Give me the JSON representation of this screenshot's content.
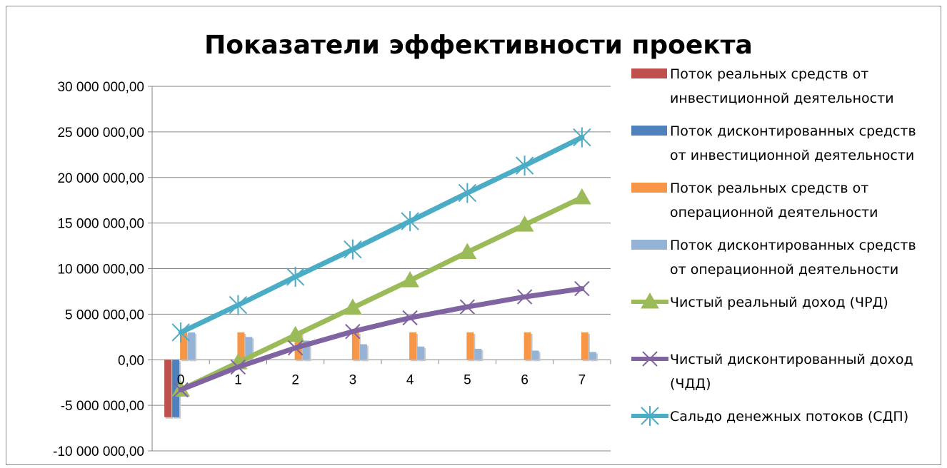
{
  "chart_data": {
    "type": "bar",
    "title": "Показатели эффективности проекта",
    "xlabel": "",
    "ylabel": "",
    "categories": [
      "0",
      "1",
      "2",
      "3",
      "4",
      "5",
      "6",
      "7"
    ],
    "y_tick_labels": [
      "30 000 000,00",
      "25 000 000,00",
      "20 000 000,00",
      "15 000 000,00",
      "10 000 000,00",
      "5 000 000,00",
      "0,00",
      "-5 000 000,00",
      "-10 000 000,00"
    ],
    "ylim": [
      -10000000,
      30000000
    ],
    "grid": true,
    "legend_position": "right",
    "series": [
      {
        "name": "Поток реальных средств от инвестиционной деятельности",
        "kind": "bar",
        "color": "#c0504d",
        "values": [
          -6300000,
          0,
          0,
          0,
          0,
          0,
          0,
          0
        ]
      },
      {
        "name": "Поток дисконтированных средств от инвестиционной деятельности",
        "kind": "bar",
        "color": "#4f81bd",
        "values": [
          -6300000,
          0,
          0,
          0,
          0,
          0,
          0,
          0
        ]
      },
      {
        "name": "Поток реальных средств от операционной деятельности",
        "kind": "bar",
        "color": "#f79646",
        "values": [
          3000000,
          3000000,
          3000000,
          3000000,
          3000000,
          3000000,
          3000000,
          3000000
        ]
      },
      {
        "name": "Поток дисконтированных средств от операционной деятельности",
        "kind": "bar",
        "color": "#95b3d7",
        "values": [
          3000000,
          2500000,
          2100000,
          1700000,
          1450000,
          1200000,
          1000000,
          850000
        ]
      },
      {
        "name": "Чистый реальный доход (ЧРД)",
        "kind": "line",
        "marker": "triangle",
        "color": "#9bbb59",
        "values": [
          -3300000,
          -300000,
          2700000,
          5700000,
          8700000,
          11800000,
          14800000,
          17800000
        ]
      },
      {
        "name": "Чистый дисконтированный доход (ЧДД)",
        "kind": "line",
        "marker": "x",
        "color": "#8064a2",
        "values": [
          -3300000,
          -800000,
          1300000,
          3100000,
          4600000,
          5800000,
          6900000,
          7800000
        ]
      },
      {
        "name": "Сальдо денежных потоков (СДП)",
        "kind": "line",
        "marker": "star",
        "color": "#4bacc6",
        "values": [
          3000000,
          6000000,
          9100000,
          12100000,
          15200000,
          18300000,
          21300000,
          24400000
        ]
      }
    ],
    "legend": [
      {
        "lines": [
          "Поток реальных средств от",
          "инвестиционной деятельности"
        ]
      },
      {
        "lines": [
          "Поток дисконтированных средств",
          "от инвестиционной деятельности"
        ]
      },
      {
        "lines": [
          "Поток реальных средств от",
          "операционной деятельности"
        ]
      },
      {
        "lines": [
          "Поток дисконтированных средств",
          "от операционной деятельности"
        ]
      },
      {
        "lines": [
          "Чистый реальный доход (ЧРД)"
        ]
      },
      {
        "lines": [
          "Чистый дисконтированный доход",
          "(ЧДД)"
        ]
      },
      {
        "lines": [
          "Сальдо денежных потоков (СДП)"
        ]
      }
    ]
  }
}
